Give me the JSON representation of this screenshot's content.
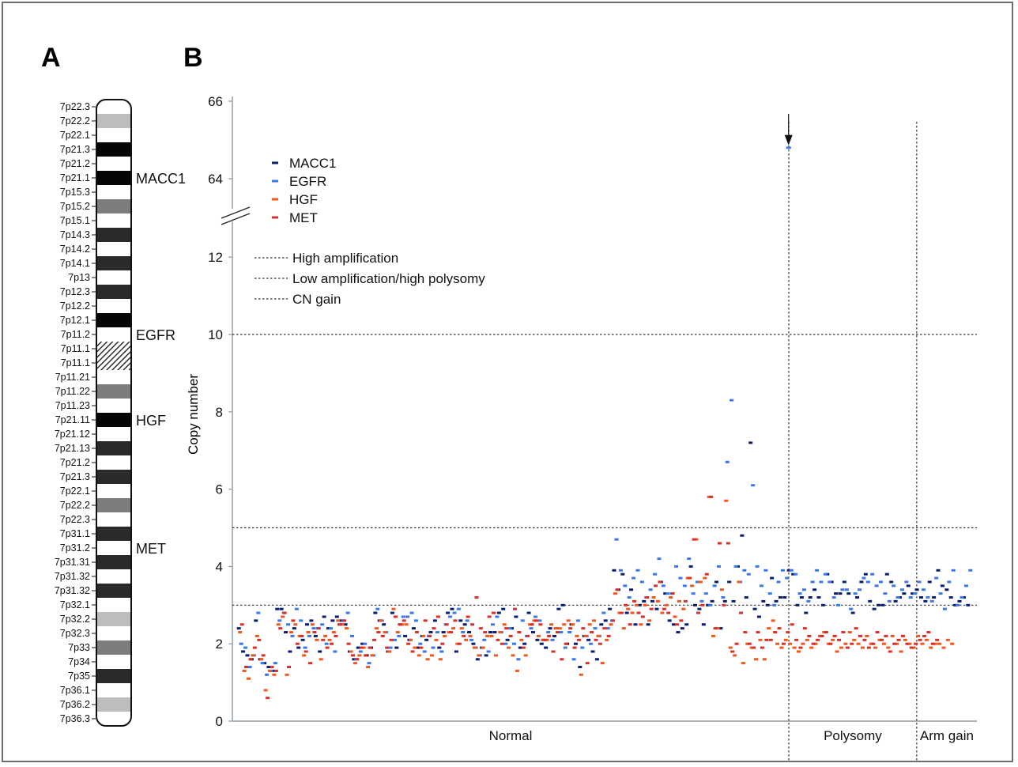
{
  "panels": {
    "a": "A",
    "b": "B"
  },
  "ideogram": {
    "bands": [
      {
        "label": "7p22.3",
        "shade": "white"
      },
      {
        "label": "7p22.2",
        "shade": "lightgray"
      },
      {
        "label": "7p22.1",
        "shade": "white"
      },
      {
        "label": "7p21.3",
        "shade": "black"
      },
      {
        "label": "7p21.2",
        "shade": "white"
      },
      {
        "label": "7p21.1",
        "shade": "black"
      },
      {
        "label": "7p15.3",
        "shade": "white"
      },
      {
        "label": "7p15.2",
        "shade": "gray"
      },
      {
        "label": "7p15.1",
        "shade": "white"
      },
      {
        "label": "7p14.3",
        "shade": "darkgray"
      },
      {
        "label": "7p14.2",
        "shade": "white"
      },
      {
        "label": "7p14.1",
        "shade": "darkgray"
      },
      {
        "label": "7p13",
        "shade": "white"
      },
      {
        "label": "7p12.3",
        "shade": "darkgray"
      },
      {
        "label": "7p12.2",
        "shade": "white"
      },
      {
        "label": "7p12.1",
        "shade": "black"
      },
      {
        "label": "7p11.2",
        "shade": "white"
      },
      {
        "label": "7p11.1",
        "shade": "hatch"
      },
      {
        "label": "7p11.1",
        "shade": "hatch"
      },
      {
        "label": "7p11.21",
        "shade": "white"
      },
      {
        "label": "7p11.22",
        "shade": "gray"
      },
      {
        "label": "7p11.23",
        "shade": "white"
      },
      {
        "label": "7p21.11",
        "shade": "black"
      },
      {
        "label": "7p21.12",
        "shade": "white"
      },
      {
        "label": "7p21.13",
        "shade": "darkgray"
      },
      {
        "label": "7p21.2",
        "shade": "white"
      },
      {
        "label": "7p21.3",
        "shade": "darkgray"
      },
      {
        "label": "7p22.1",
        "shade": "white"
      },
      {
        "label": "7p22.2",
        "shade": "gray"
      },
      {
        "label": "7p22.3",
        "shade": "white"
      },
      {
        "label": "7p31.1",
        "shade": "darkgray"
      },
      {
        "label": "7p31.2",
        "shade": "white"
      },
      {
        "label": "7p31.31",
        "shade": "darkgray"
      },
      {
        "label": "7p31.32",
        "shade": "white"
      },
      {
        "label": "7p31.32",
        "shade": "darkgray"
      },
      {
        "label": "7p32.1",
        "shade": "white"
      },
      {
        "label": "7p32.2",
        "shade": "lightgray"
      },
      {
        "label": "7p32.3",
        "shade": "white"
      },
      {
        "label": "7p33",
        "shade": "gray"
      },
      {
        "label": "7p34",
        "shade": "white"
      },
      {
        "label": "7p35",
        "shade": "darkgray"
      },
      {
        "label": "7p36.1",
        "shade": "white"
      },
      {
        "label": "7p36.2",
        "shade": "lightgray"
      },
      {
        "label": "7p36.3",
        "shade": "white"
      }
    ],
    "genes": [
      {
        "name": "MACC1",
        "band_index": 5
      },
      {
        "name": "EGFR",
        "band_index": 16
      },
      {
        "name": "HGF",
        "band_index": 22
      },
      {
        "name": "MET",
        "band_index": 31
      }
    ]
  },
  "chart_data": {
    "type": "scatter",
    "ylabel": "Copy number",
    "xlabel": "",
    "yticks_lower": [
      "0",
      "2",
      "4",
      "6",
      "8",
      "10",
      "12"
    ],
    "yticks_upper": [
      "64",
      "66"
    ],
    "ylim_lower": [
      0,
      12.5
    ],
    "ylim_upper": [
      63,
      66
    ],
    "thresholds": [
      {
        "label": "High amplification",
        "value": 10
      },
      {
        "label": "Low amplification/high polysomy",
        "value": 5
      },
      {
        "label": "CN gain",
        "value": 3
      }
    ],
    "groups": [
      {
        "label": "Normal",
        "start": 1,
        "end": 129
      },
      {
        "label": "Polysomy",
        "start": 130,
        "end": 159
      },
      {
        "label": "Arm gain",
        "start": 160,
        "end": 170
      }
    ],
    "series": [
      {
        "name": "MACC1",
        "color": "#0a1f6e",
        "values": [
          2.4,
          1.8,
          1.7,
          1.6,
          2.6,
          1.6,
          1.5,
          1.4,
          1.3,
          2.9,
          2.9,
          2.3,
          1.8,
          2.4,
          1.9,
          2.1,
          2.5,
          2.6,
          2.2,
          1.8,
          2.7,
          2.4,
          2.6,
          2.7,
          2.6,
          2.5,
          1.8,
          1.6,
          1.9,
          2.0,
          1.7,
          1.9,
          2.8,
          2.6,
          2.5,
          1.8,
          2.8,
          1.9,
          2.5,
          2.2,
          2.1,
          2.4,
          1.9,
          2.2,
          2.1,
          2.3,
          2.6,
          1.9,
          2.3,
          2.8,
          2.9,
          1.8,
          2.6,
          2.5,
          2.3,
          2.0,
          1.6,
          1.9,
          1.7,
          2.3,
          2.3,
          2.8,
          2.9,
          2.1,
          2.4,
          2.7,
          1.9,
          2.0,
          2.8,
          2.3,
          2.1,
          2.0,
          1.9,
          2.4,
          2.2,
          2.9,
          3.0,
          2.0,
          2.5,
          2.0,
          1.4,
          2.2,
          2.1,
          1.8,
          1.6,
          2.5,
          2.6,
          2.9,
          3.9,
          3.4,
          3.8,
          2.8,
          3.4,
          2.5,
          3.0,
          3.1,
          2.5,
          3.1,
          2.9,
          3.6,
          3.3,
          2.6,
          2.5,
          2.3,
          2.4,
          2.5,
          4.0,
          3.0,
          2.9,
          2.5,
          3.0,
          3.1,
          3.6,
          2.4,
          3.1,
          3.6,
          3.1,
          4.0,
          4.8,
          3.2,
          7.2,
          2.9,
          2.7,
          3.1,
          3.0,
          3.7,
          3.1,
          3.2,
          3.2,
          3.9,
          3.8,
          3.0,
          3.2,
          2.8,
          3.2,
          3.4,
          3.2,
          3.0,
          3.8,
          3.6,
          3.3,
          3.3,
          3.6,
          3.3,
          2.8,
          3.2,
          3.6,
          3.8,
          3.1,
          2.9,
          3.0,
          3.0,
          3.8,
          3.6,
          3.1,
          3.2,
          3.3,
          3.5,
          3.3,
          3.4,
          3.2,
          3.1,
          3.6,
          3.2,
          3.9,
          3.5,
          3.4,
          3.2,
          3.0,
          3.1,
          3.2,
          3.0
        ]
      },
      {
        "name": "EGFR",
        "color": "#3d78e8",
        "values": [
          2.0,
          1.9,
          1.4,
          1.7,
          2.8,
          1.5,
          1.2,
          1.3,
          1.5,
          2.6,
          2.8,
          2.5,
          2.2,
          2.9,
          2.6,
          1.9,
          2.2,
          2.4,
          2.4,
          2.5,
          2.0,
          2.4,
          1.8,
          2.5,
          2.6,
          2.8,
          2.2,
          1.6,
          1.8,
          2.0,
          1.5,
          1.7,
          2.9,
          2.6,
          2.3,
          1.9,
          2.1,
          2.2,
          2.7,
          2.7,
          2.8,
          2.6,
          2.0,
          1.8,
          2.2,
          1.9,
          2.3,
          1.8,
          2.5,
          2.7,
          2.8,
          2.9,
          2.3,
          2.6,
          2.1,
          1.9,
          1.7,
          2.1,
          1.8,
          2.5,
          2.7,
          2.3,
          2.0,
          2.4,
          2.0,
          1.6,
          2.6,
          2.2,
          2.4,
          2.7,
          2.6,
          2.1,
          2.3,
          2.1,
          2.4,
          2.3,
          1.9,
          2.3,
          1.6,
          2.6,
          1.9,
          2.2,
          2.0,
          2.4,
          2.2,
          2.8,
          2.4,
          2.6,
          4.7,
          3.9,
          3.5,
          3.2,
          3.7,
          3.9,
          3.6,
          3.2,
          3.4,
          3.8,
          4.2,
          3.5,
          3.3,
          3.3,
          4.0,
          3.7,
          3.5,
          4.2,
          3.3,
          3.6,
          3.1,
          3.3,
          3.0,
          3.5,
          4.0,
          3.2,
          6.7,
          8.3,
          4.0,
          3.6,
          3.9,
          3.8,
          6.1,
          4.0,
          3.5,
          3.9,
          3.3,
          3.0,
          3.6,
          3.9,
          3.7,
          3.9,
          3.8,
          3.3,
          3.4,
          3.1,
          3.6,
          3.9,
          3.6,
          3.8,
          3.6,
          3.2,
          3.0,
          3.4,
          3.4,
          2.9,
          3.3,
          3.4,
          3.7,
          3.6,
          3.8,
          3.5,
          3.6,
          3.3,
          3.1,
          3.5,
          3.2,
          3.4,
          3.6,
          3.2,
          3.3,
          3.6,
          3.4,
          3.2,
          3.1,
          3.7,
          3.3,
          2.9,
          3.6,
          3.9,
          3.0,
          3.2,
          3.5,
          3.9
        ]
      },
      {
        "name": "HGF",
        "color": "#f0581e",
        "values": [
          2.3,
          1.3,
          1.1,
          1.7,
          2.2,
          1.6,
          0.8,
          1.3,
          1.2,
          2.5,
          2.7,
          1.2,
          2.3,
          2.5,
          2.2,
          1.7,
          2.3,
          2.5,
          2.1,
          1.6,
          2.2,
          2.1,
          2.3,
          2.6,
          2.5,
          2.4,
          1.8,
          1.5,
          1.7,
          1.9,
          1.4,
          1.7,
          2.4,
          2.6,
          2.3,
          1.8,
          2.9,
          2.3,
          2.5,
          2.5,
          2.1,
          1.9,
          1.7,
          2.2,
          1.6,
          1.7,
          2.1,
          1.6,
          2.2,
          2.3,
          2.4,
          2.0,
          2.4,
          2.1,
          2.2,
          1.9,
          1.7,
          1.9,
          2.2,
          2.2,
          1.7,
          2.3,
          2.5,
          1.9,
          1.7,
          1.3,
          2.1,
          1.7,
          2.5,
          2.6,
          2.2,
          2.1,
          2.1,
          2.5,
          2.4,
          2.4,
          2.5,
          2.6,
          2.5,
          2.2,
          1.2,
          2.2,
          2.5,
          2.6,
          2.2,
          1.5,
          2.1,
          2.5,
          3.3,
          2.8,
          2.4,
          2.9,
          2.8,
          3.0,
          2.5,
          3.0,
          2.6,
          3.2,
          3.1,
          2.8,
          3.0,
          3.2,
          2.7,
          3.1,
          2.9,
          3.7,
          3.5,
          4.7,
          3.6,
          3.7,
          5.8,
          2.2,
          2.4,
          3.4,
          5.7,
          1.9,
          1.7,
          3.6,
          1.5,
          2.0,
          1.9,
          1.6,
          2.1,
          1.6,
          2.4,
          2.6,
          2.0,
          1.9,
          2.1,
          2.0,
          1.9,
          1.8,
          2.0,
          2.1,
          1.9,
          2.0,
          2.2,
          2.3,
          2.0,
          2.1,
          1.8,
          1.9,
          2.0,
          2.3,
          2.1,
          2.0,
          1.9,
          2.2,
          2.0,
          1.9,
          2.1,
          2.0,
          1.9,
          2.2,
          2.0,
          1.8,
          2.1,
          2.0,
          1.9,
          2.2,
          2.0,
          2.1,
          1.9,
          2.0,
          2.0,
          1.9,
          2.1,
          2.0
        ]
      },
      {
        "name": "MET",
        "color": "#d8312a",
        "values": [
          2.5,
          1.4,
          1.6,
          1.9,
          2.1,
          1.7,
          0.6,
          1.4,
          1.3,
          2.4,
          2.8,
          1.4,
          2.6,
          2.0,
          2.2,
          1.8,
          1.5,
          2.3,
          2.4,
          2.1,
          1.9,
          2.0,
          2.2,
          2.5,
          2.6,
          2.0,
          1.7,
          1.6,
          1.9,
          1.7,
          1.9,
          2.1,
          2.3,
          2.2,
          1.9,
          2.1,
          2.7,
          2.5,
          2.6,
          2.0,
          1.8,
          2.3,
          1.9,
          2.6,
          2.2,
          2.4,
          2.7,
          2.0,
          2.5,
          2.3,
          2.6,
          2.0,
          2.2,
          2.7,
          2.5,
          3.2,
          2.4,
          2.3,
          2.7,
          2.8,
          2.1,
          2.0,
          2.4,
          2.2,
          2.9,
          2.3,
          1.9,
          2.2,
          2.5,
          2.6,
          2.5,
          2.1,
          2.2,
          1.8,
          2.3,
          1.6,
          2.0,
          2.4,
          1.9,
          2.1,
          2.4,
          1.5,
          2.3,
          2.1,
          2.0,
          2.4,
          2.2,
          2.6,
          3.4,
          2.8,
          3.0,
          2.5,
          3.1,
          2.8,
          2.7,
          3.2,
          2.9,
          3.5,
          3.6,
          2.9,
          2.8,
          3.3,
          2.5,
          2.6,
          3.1,
          3.7,
          4.7,
          2.8,
          3.0,
          3.8,
          5.8,
          2.4,
          4.6,
          3.0,
          4.6,
          1.8,
          2.0,
          2.8,
          2.3,
          2.0,
          1.9,
          2.3,
          1.9,
          2.1,
          2.1,
          2.3,
          2.4,
          2.0,
          2.3,
          2.5,
          2.1,
          1.9,
          2.4,
          2.2,
          2.0,
          2.1,
          2.2,
          2.3,
          2.0,
          2.2,
          2.1,
          2.3,
          1.9,
          2.0,
          2.4,
          2.2,
          2.1,
          1.9,
          2.0,
          2.3,
          2.1,
          2.2,
          1.8,
          2.0,
          2.1,
          2.2,
          2.0,
          1.9,
          2.0,
          2.1,
          2.2,
          2.3,
          2.0,
          2.1
        ]
      }
    ],
    "outlier": {
      "sample": 130,
      "value": 64.8,
      "series": "EGFR",
      "marker": "arrow"
    },
    "legend_placement": "upper-left"
  }
}
